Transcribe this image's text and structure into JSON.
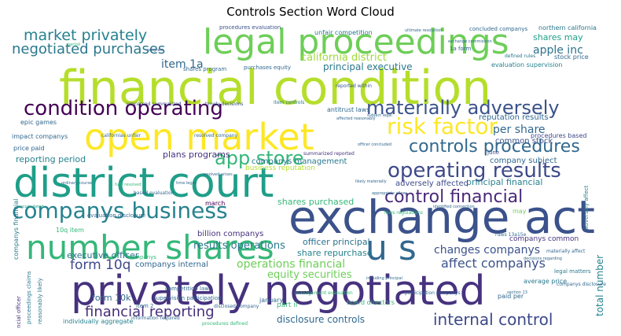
{
  "chart_data": {
    "type": "word_cloud",
    "title": "Controls Section Word Cloud",
    "background": "#ffffff",
    "colormap": "viridis",
    "words": [
      {
        "text": "financial condition",
        "weight": 1.0,
        "color": "#b5de2b"
      },
      {
        "text": "privately negotiated",
        "weight": 0.98,
        "color": "#46327e"
      },
      {
        "text": "exchange act",
        "weight": 0.95,
        "color": "#3b528b"
      },
      {
        "text": "district court",
        "weight": 0.9,
        "color": "#1f9e89"
      },
      {
        "text": "open market",
        "weight": 0.85,
        "color": "#fde725"
      },
      {
        "text": "legal proceedings",
        "weight": 0.75,
        "color": "#6ece58"
      },
      {
        "text": "number shares",
        "weight": 0.72,
        "color": "#35b779"
      },
      {
        "text": "u s",
        "weight": 0.7,
        "color": "#31688e"
      },
      {
        "text": "companys business",
        "weight": 0.55,
        "color": "#26828e"
      },
      {
        "text": "condition operating",
        "weight": 0.5,
        "color": "#440154"
      },
      {
        "text": "operating results",
        "weight": 0.48,
        "color": "#3e4989"
      },
      {
        "text": "risk factor",
        "weight": 0.45,
        "color": "#fde725"
      },
      {
        "text": "materially adversely",
        "weight": 0.44,
        "color": "#3b528b"
      },
      {
        "text": "control financial",
        "weight": 0.43,
        "color": "#482878"
      },
      {
        "text": "internal control",
        "weight": 0.42,
        "color": "#3e4989"
      },
      {
        "text": "app store",
        "weight": 0.42,
        "color": "#35b779"
      },
      {
        "text": "controls procedures",
        "weight": 0.4,
        "color": "#31688e"
      },
      {
        "text": "financial reporting",
        "weight": 0.36,
        "color": "#472d7b"
      },
      {
        "text": "market privately",
        "weight": 0.35,
        "color": "#26828e"
      },
      {
        "text": "negotiated purchases",
        "weight": 0.35,
        "color": "#2a788e"
      },
      {
        "text": "form 10q",
        "weight": 0.33,
        "color": "#3e4989"
      },
      {
        "text": "affect companys",
        "weight": 0.3,
        "color": "#3b528b"
      },
      {
        "text": "item 1a",
        "weight": 0.26,
        "color": "#31688e"
      },
      {
        "text": "apple inc",
        "weight": 0.25,
        "color": "#2c728e"
      },
      {
        "text": "per share",
        "weight": 0.24,
        "color": "#31688e"
      },
      {
        "text": "california district",
        "weight": 0.24,
        "color": "#a0da39"
      },
      {
        "text": "operations financial",
        "weight": 0.24,
        "color": "#6ece58"
      },
      {
        "text": "results operations",
        "weight": 0.23,
        "color": "#2a788e"
      },
      {
        "text": "changes companys",
        "weight": 0.23,
        "color": "#3b528b"
      },
      {
        "text": "disclosure controls",
        "weight": 0.22,
        "color": "#31688e"
      },
      {
        "text": "shares may",
        "weight": 0.22,
        "color": "#1f9e89"
      },
      {
        "text": "equity securities",
        "weight": 0.22,
        "color": "#6ece58"
      },
      {
        "text": "principal executive",
        "weight": 0.21,
        "color": "#2a788e"
      },
      {
        "text": "reporting period",
        "weight": 0.2,
        "color": "#26828e"
      },
      {
        "text": "executive officer",
        "weight": 0.2,
        "color": "#2c728e"
      },
      {
        "text": "principal financial",
        "weight": 0.2,
        "color": "#26828e"
      },
      {
        "text": "total number",
        "weight": 0.2,
        "color": "#26828e"
      },
      {
        "text": "shares purchased",
        "weight": 0.19,
        "color": "#35b779"
      },
      {
        "text": "plans programs",
        "weight": 0.19,
        "color": "#46327e"
      },
      {
        "text": "share repurchase",
        "weight": 0.18,
        "color": "#26828e"
      },
      {
        "text": "officer principal",
        "weight": 0.18,
        "color": "#2c728e"
      },
      {
        "text": "adversely affected",
        "weight": 0.17,
        "color": "#3e4989"
      },
      {
        "text": "companys management",
        "weight": 0.17,
        "color": "#2a788e"
      },
      {
        "text": "form 10k",
        "weight": 0.17,
        "color": "#31688e"
      },
      {
        "text": "companys internal",
        "weight": 0.17,
        "color": "#31688e"
      },
      {
        "text": "reputation results",
        "weight": 0.16,
        "color": "#31688e"
      },
      {
        "text": "company subject",
        "weight": 0.16,
        "color": "#31688e"
      },
      {
        "text": "common stock",
        "weight": 0.15,
        "color": "#3b528b"
      },
      {
        "text": "billion companys",
        "weight": 0.15,
        "color": "#46327e"
      },
      {
        "text": "business reputation",
        "weight": 0.15,
        "color": "#b5de2b"
      },
      {
        "text": "companys common",
        "weight": 0.14,
        "color": "#46327e"
      },
      {
        "text": "part ii",
        "weight": 0.14,
        "color": "#35b779"
      },
      {
        "text": "board directors",
        "weight": 0.13,
        "color": "#35b779"
      },
      {
        "text": "epic games",
        "weight": 0.12,
        "color": "#31688e"
      },
      {
        "text": "antitrust laws",
        "weight": 0.12,
        "color": "#31688e"
      },
      {
        "text": "companys financial",
        "weight": 0.12,
        "color": "#2a788e"
      },
      {
        "text": "northern california",
        "weight": 0.11,
        "color": "#2a788e"
      },
      {
        "text": "stock price",
        "weight": 0.11,
        "color": "#31688e"
      },
      {
        "text": "evaluation supervision",
        "weight": 0.11,
        "color": "#26828e"
      },
      {
        "text": "procedures based",
        "weight": 0.11,
        "color": "#3e4989"
      },
      {
        "text": "average price",
        "weight": 0.11,
        "color": "#2a788e"
      },
      {
        "text": "paid per",
        "weight": 0.11,
        "color": "#31688e"
      },
      {
        "text": "impact companys",
        "weight": 0.11,
        "color": "#31688e"
      },
      {
        "text": "price paid",
        "weight": 0.11,
        "color": "#31688e"
      },
      {
        "text": "10q item",
        "weight": 0.1,
        "color": "#35b779"
      },
      {
        "text": "individually aggregate",
        "weight": 0.1,
        "color": "#26828e"
      },
      {
        "text": "procedures evaluation",
        "weight": 0.1,
        "color": "#3b528b"
      },
      {
        "text": "unfair competition",
        "weight": 0.1,
        "color": "#2a788e"
      },
      {
        "text": "shares program",
        "weight": 0.1,
        "color": "#31688e"
      },
      {
        "text": "purchases equity",
        "weight": 0.1,
        "color": "#31688e"
      },
      {
        "text": "evaluation disclosure",
        "weight": 0.1,
        "color": "#31688e"
      },
      {
        "text": "legal matters",
        "weight": 0.1,
        "color": "#2a788e"
      },
      {
        "text": "march",
        "weight": 0.1,
        "color": "#440154"
      },
      {
        "text": "january",
        "weight": 0.09,
        "color": "#31688e"
      },
      {
        "text": "may",
        "weight": 0.1,
        "color": "#6ece58"
      },
      {
        "text": "june",
        "weight": 0.09,
        "color": "#3e4989"
      },
      {
        "text": "item 2",
        "weight": 0.09,
        "color": "#31688e"
      },
      {
        "text": "concluded companys",
        "weight": 0.09,
        "color": "#31688e"
      },
      {
        "text": "proceedings claims",
        "weight": 0.09,
        "color": "#2a788e"
      },
      {
        "text": "reasonably likely",
        "weight": 0.09,
        "color": "#2a788e"
      },
      {
        "text": "supervision participation",
        "weight": 0.09,
        "color": "#31688e"
      },
      {
        "text": "competition law",
        "weight": 0.09,
        "color": "#31688e"
      },
      {
        "text": "information required",
        "weight": 0.09,
        "color": "#31688e"
      },
      {
        "text": "procedures defined",
        "weight": 0.09,
        "color": "#35b779"
      },
      {
        "text": "disclosed company",
        "weight": 0.09,
        "color": "#31688e"
      },
      {
        "text": "management evaluation",
        "weight": 0.08,
        "color": "#35b779"
      },
      {
        "text": "participation companys",
        "weight": 0.08,
        "color": "#31688e"
      },
      {
        "text": "materially affect",
        "weight": 0.08,
        "color": "#31688e"
      },
      {
        "text": "companys",
        "weight": 0.08,
        "color": "#35b779"
      },
      {
        "text": "financial officer",
        "weight": 0.08,
        "color": "#46327e"
      },
      {
        "text": "based evaluation",
        "weight": 0.08,
        "color": "#31688e"
      },
      {
        "text": "1a form",
        "weight": 0.08,
        "color": "#31688e"
      },
      {
        "text": "companys disclosure",
        "weight": 0.08,
        "color": "#31688e"
      },
      {
        "text": "defined rules",
        "weight": 0.08,
        "color": "#2a788e"
      },
      {
        "text": "resolved company",
        "weight": 0.08,
        "color": "#31688e"
      },
      {
        "text": "californias unfair",
        "weight": 0.08,
        "color": "#31688e"
      },
      {
        "text": "rules 13a15e",
        "weight": 0.07,
        "color": "#31688e"
      },
      {
        "text": "reported within",
        "weight": 0.07,
        "color": "#3b528b"
      },
      {
        "text": "accumulated",
        "weight": 0.07,
        "color": "#1f9e89"
      },
      {
        "text": "item controls",
        "weight": 0.07,
        "color": "#2a788e"
      },
      {
        "text": "timely decisions",
        "weight": 0.07,
        "color": "#3b528b"
      },
      {
        "text": "processed summarized",
        "weight": 0.07,
        "color": "#3e4989"
      },
      {
        "text": "summarized reported",
        "weight": 0.07,
        "color": "#46327e"
      },
      {
        "text": "laws regulations",
        "weight": 0.07,
        "color": "#35b779"
      },
      {
        "text": "fully resolved",
        "weight": 0.06,
        "color": "#35b779"
      },
      {
        "text": "resolved arises",
        "weight": 0.06,
        "color": "#31688e"
      },
      {
        "text": "time legal",
        "weight": 0.06,
        "color": "#31688e"
      },
      {
        "text": "subject legal",
        "weight": 0.06,
        "color": "#31688e"
      },
      {
        "text": "likely materially",
        "weight": 0.06,
        "color": "#31688e"
      },
      {
        "text": "officer concluded",
        "weight": 0.06,
        "color": "#31688e"
      },
      {
        "text": "ordinary course",
        "weight": 0.06,
        "color": "#31688e"
      },
      {
        "text": "decisions regarding",
        "weight": 0.06,
        "color": "#31688e"
      },
      {
        "text": "section 13",
        "weight": 0.06,
        "color": "#31688e"
      },
      {
        "text": "exchange commission",
        "weight": 0.06,
        "color": "#31688e"
      },
      {
        "text": "including principal",
        "weight": 0.06,
        "color": "#31688e"
      },
      {
        "text": "adversely affect",
        "weight": 0.07,
        "color": "#26828e"
      },
      {
        "text": "affected reasonably",
        "weight": 0.06,
        "color": "#31688e"
      },
      {
        "text": "period",
        "weight": 0.06,
        "color": "#35b779"
      },
      {
        "text": "ultimate resolution",
        "weight": 0.05,
        "color": "#31688e"
      },
      {
        "text": "appropriate allow",
        "weight": 0.05,
        "color": "#31688e"
      },
      {
        "text": "identified connection",
        "weight": 0.05,
        "color": "#31688e"
      },
      {
        "text": "program",
        "weight": 0.05,
        "color": "#3b528b"
      },
      {
        "text": "new",
        "weight": 0.05,
        "color": "#31688e"
      }
    ]
  }
}
